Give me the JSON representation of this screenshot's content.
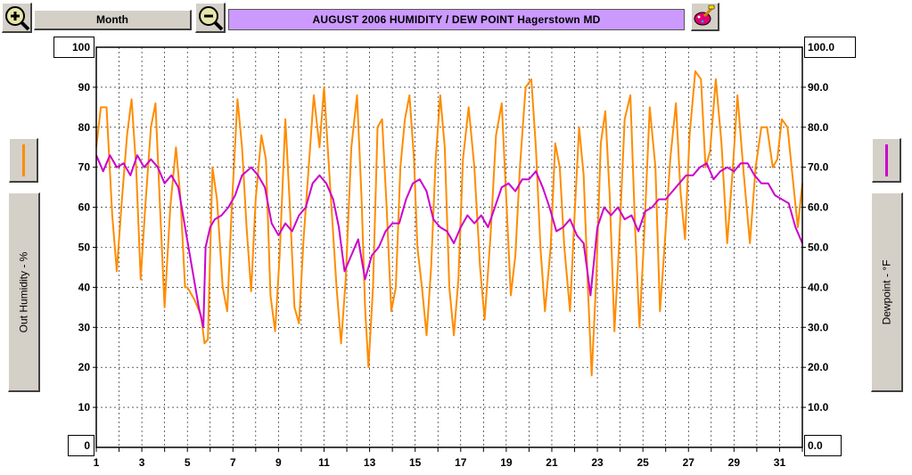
{
  "toolbar": {
    "zoom_in_icon": "magnifier-plus-icon",
    "period_label": "Month",
    "zoom_out_icon": "magnifier-minus-icon",
    "title": "AUGUST  2006  HUMIDITY / DEW POINT  Hagerstown MD",
    "color_icon": "paint-palette-icon"
  },
  "left_axis": {
    "label": "Out Humidity - %",
    "top_value": "100",
    "bottom_value": "0",
    "swatch_color": "#ff8c00"
  },
  "right_axis": {
    "label": "Dewpoint - °F",
    "top_value": "100.0",
    "bottom_value": "0.0",
    "swatch_color": "#cc00cc"
  },
  "chart_data": {
    "type": "line",
    "x_ticks": [
      "1",
      "3",
      "5",
      "7",
      "9",
      "11",
      "13",
      "15",
      "17",
      "19",
      "21",
      "23",
      "25",
      "27",
      "29",
      "31"
    ],
    "xlim": [
      1,
      32
    ],
    "y_left_ticks": [
      "90",
      "80",
      "70",
      "60",
      "50",
      "40",
      "30",
      "20",
      "10"
    ],
    "y_right_ticks": [
      "90.0",
      "80.0",
      "70.0",
      "60.0",
      "50.0",
      "40.0",
      "30.0",
      "20.0",
      "10.0"
    ],
    "ylim": [
      0,
      100
    ],
    "grid": true,
    "series": [
      {
        "color": "#ff8c00",
        "axis": "left",
        "points": [
          [
            1.0,
            75
          ],
          [
            1.2,
            85
          ],
          [
            1.45,
            85
          ],
          [
            1.7,
            58
          ],
          [
            1.9,
            44
          ],
          [
            2.1,
            60
          ],
          [
            2.35,
            78
          ],
          [
            2.55,
            87
          ],
          [
            2.75,
            70
          ],
          [
            2.95,
            42
          ],
          [
            3.15,
            60
          ],
          [
            3.4,
            80
          ],
          [
            3.6,
            86
          ],
          [
            3.8,
            60
          ],
          [
            4.0,
            35
          ],
          [
            4.25,
            60
          ],
          [
            4.5,
            75
          ],
          [
            4.7,
            62
          ],
          [
            4.9,
            40
          ],
          [
            5.0,
            40
          ],
          [
            5.3,
            37
          ],
          [
            5.6,
            33
          ],
          [
            5.75,
            26
          ],
          [
            5.9,
            27
          ],
          [
            6.1,
            70
          ],
          [
            6.3,
            62
          ],
          [
            6.55,
            40
          ],
          [
            6.75,
            34
          ],
          [
            6.95,
            60
          ],
          [
            7.2,
            87
          ],
          [
            7.4,
            75
          ],
          [
            7.6,
            55
          ],
          [
            7.8,
            39
          ],
          [
            8.0,
            62
          ],
          [
            8.25,
            78
          ],
          [
            8.45,
            72
          ],
          [
            8.65,
            38
          ],
          [
            8.85,
            29
          ],
          [
            9.05,
            48
          ],
          [
            9.3,
            82
          ],
          [
            9.5,
            60
          ],
          [
            9.7,
            35
          ],
          [
            9.9,
            31
          ],
          [
            10.1,
            52
          ],
          [
            10.35,
            72
          ],
          [
            10.55,
            88
          ],
          [
            10.8,
            75
          ],
          [
            11.0,
            90
          ],
          [
            11.15,
            76
          ],
          [
            11.35,
            58
          ],
          [
            11.55,
            40
          ],
          [
            11.75,
            26
          ],
          [
            11.95,
            42
          ],
          [
            12.2,
            75
          ],
          [
            12.45,
            88
          ],
          [
            12.65,
            62
          ],
          [
            12.8,
            35
          ],
          [
            12.95,
            20
          ],
          [
            13.15,
            40
          ],
          [
            13.35,
            80
          ],
          [
            13.55,
            82
          ],
          [
            13.75,
            60
          ],
          [
            13.95,
            34
          ],
          [
            14.15,
            40
          ],
          [
            14.35,
            70
          ],
          [
            14.55,
            82
          ],
          [
            14.75,
            88
          ],
          [
            14.95,
            72
          ],
          [
            15.1,
            50
          ],
          [
            15.3,
            40
          ],
          [
            15.5,
            28
          ],
          [
            15.7,
            45
          ],
          [
            15.9,
            72
          ],
          [
            16.1,
            88
          ],
          [
            16.3,
            75
          ],
          [
            16.5,
            40
          ],
          [
            16.7,
            28
          ],
          [
            16.9,
            42
          ],
          [
            17.1,
            72
          ],
          [
            17.35,
            85
          ],
          [
            17.6,
            70
          ],
          [
            17.85,
            45
          ],
          [
            18.05,
            32
          ],
          [
            18.3,
            52
          ],
          [
            18.55,
            78
          ],
          [
            18.8,
            86
          ],
          [
            19.0,
            62
          ],
          [
            19.2,
            38
          ],
          [
            19.4,
            48
          ],
          [
            19.6,
            70
          ],
          [
            19.85,
            90
          ],
          [
            20.1,
            92
          ],
          [
            20.3,
            75
          ],
          [
            20.5,
            50
          ],
          [
            20.7,
            34
          ],
          [
            20.95,
            50
          ],
          [
            21.15,
            76
          ],
          [
            21.35,
            70
          ],
          [
            21.55,
            50
          ],
          [
            21.8,
            34
          ],
          [
            22.0,
            58
          ],
          [
            22.2,
            80
          ],
          [
            22.4,
            68
          ],
          [
            22.6,
            38
          ],
          [
            22.75,
            18
          ],
          [
            22.95,
            42
          ],
          [
            23.15,
            76
          ],
          [
            23.35,
            84
          ],
          [
            23.55,
            62
          ],
          [
            23.75,
            29
          ],
          [
            23.95,
            50
          ],
          [
            24.2,
            82
          ],
          [
            24.45,
            88
          ],
          [
            24.65,
            56
          ],
          [
            24.85,
            30
          ],
          [
            25.05,
            52
          ],
          [
            25.3,
            85
          ],
          [
            25.55,
            70
          ],
          [
            25.75,
            34
          ],
          [
            25.95,
            50
          ],
          [
            26.2,
            72
          ],
          [
            26.45,
            86
          ],
          [
            26.65,
            64
          ],
          [
            26.85,
            52
          ],
          [
            27.05,
            78
          ],
          [
            27.3,
            94
          ],
          [
            27.55,
            92
          ],
          [
            27.75,
            70
          ],
          [
            27.95,
            74
          ],
          [
            28.2,
            92
          ],
          [
            28.45,
            76
          ],
          [
            28.7,
            51
          ],
          [
            28.95,
            70
          ],
          [
            29.15,
            88
          ],
          [
            29.4,
            70
          ],
          [
            29.7,
            51
          ],
          [
            29.95,
            70
          ],
          [
            30.2,
            80
          ],
          [
            30.45,
            80
          ],
          [
            30.7,
            70
          ],
          [
            30.9,
            72
          ],
          [
            31.1,
            82
          ],
          [
            31.35,
            80
          ],
          [
            31.6,
            66
          ],
          [
            31.8,
            55
          ],
          [
            32.0,
            66
          ]
        ]
      },
      {
        "color": "#cc00cc",
        "axis": "right",
        "points": [
          [
            1.0,
            73
          ],
          [
            1.3,
            69
          ],
          [
            1.6,
            73
          ],
          [
            1.9,
            70
          ],
          [
            2.2,
            71
          ],
          [
            2.5,
            68
          ],
          [
            2.8,
            73
          ],
          [
            3.1,
            70
          ],
          [
            3.4,
            72
          ],
          [
            3.7,
            70
          ],
          [
            4.0,
            66
          ],
          [
            4.3,
            68
          ],
          [
            4.6,
            65
          ],
          [
            4.9,
            55
          ],
          [
            5.2,
            45
          ],
          [
            5.5,
            35
          ],
          [
            5.7,
            30
          ],
          [
            5.8,
            50
          ],
          [
            6.0,
            55
          ],
          [
            6.2,
            57
          ],
          [
            6.5,
            58
          ],
          [
            6.8,
            60
          ],
          [
            7.1,
            63
          ],
          [
            7.4,
            68
          ],
          [
            7.6,
            69
          ],
          [
            7.8,
            70
          ],
          [
            8.1,
            68
          ],
          [
            8.4,
            65
          ],
          [
            8.7,
            56
          ],
          [
            9.0,
            53
          ],
          [
            9.3,
            56
          ],
          [
            9.6,
            54
          ],
          [
            9.9,
            58
          ],
          [
            10.2,
            60
          ],
          [
            10.5,
            66
          ],
          [
            10.8,
            68
          ],
          [
            11.1,
            66
          ],
          [
            11.4,
            62
          ],
          [
            11.65,
            55
          ],
          [
            11.9,
            44
          ],
          [
            12.2,
            48
          ],
          [
            12.5,
            52
          ],
          [
            12.8,
            42
          ],
          [
            13.1,
            48
          ],
          [
            13.4,
            50
          ],
          [
            13.7,
            54
          ],
          [
            14.0,
            56
          ],
          [
            14.3,
            56
          ],
          [
            14.6,
            62
          ],
          [
            14.9,
            66
          ],
          [
            15.2,
            67
          ],
          [
            15.5,
            64
          ],
          [
            15.8,
            57
          ],
          [
            16.1,
            55
          ],
          [
            16.4,
            54
          ],
          [
            16.7,
            51
          ],
          [
            17.0,
            55
          ],
          [
            17.3,
            58
          ],
          [
            17.6,
            56
          ],
          [
            17.9,
            58
          ],
          [
            18.2,
            55
          ],
          [
            18.5,
            60
          ],
          [
            18.8,
            65
          ],
          [
            19.1,
            66
          ],
          [
            19.4,
            64
          ],
          [
            19.7,
            67
          ],
          [
            20.0,
            67
          ],
          [
            20.3,
            69
          ],
          [
            20.6,
            65
          ],
          [
            20.9,
            60
          ],
          [
            21.2,
            54
          ],
          [
            21.5,
            55
          ],
          [
            21.8,
            57
          ],
          [
            22.1,
            53
          ],
          [
            22.4,
            51
          ],
          [
            22.7,
            38
          ],
          [
            23.0,
            55
          ],
          [
            23.3,
            60
          ],
          [
            23.6,
            58
          ],
          [
            23.9,
            60
          ],
          [
            24.2,
            57
          ],
          [
            24.5,
            58
          ],
          [
            24.8,
            54
          ],
          [
            25.1,
            59
          ],
          [
            25.4,
            60
          ],
          [
            25.7,
            62
          ],
          [
            26.0,
            62
          ],
          [
            26.3,
            64
          ],
          [
            26.6,
            66
          ],
          [
            26.9,
            68
          ],
          [
            27.2,
            68
          ],
          [
            27.5,
            70
          ],
          [
            27.8,
            71
          ],
          [
            28.1,
            67
          ],
          [
            28.4,
            69
          ],
          [
            28.7,
            70
          ],
          [
            29.0,
            69
          ],
          [
            29.3,
            71
          ],
          [
            29.6,
            71
          ],
          [
            29.9,
            68
          ],
          [
            30.2,
            66
          ],
          [
            30.5,
            66
          ],
          [
            30.8,
            63
          ],
          [
            31.1,
            62
          ],
          [
            31.4,
            61
          ],
          [
            31.7,
            55
          ],
          [
            32.0,
            51
          ]
        ]
      }
    ]
  }
}
